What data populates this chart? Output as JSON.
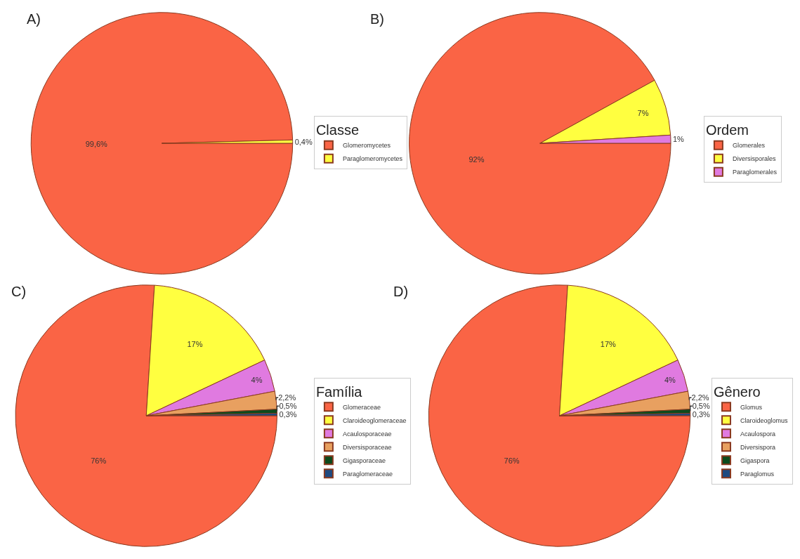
{
  "chart_data": [
    {
      "type": "pie",
      "title": "A)",
      "legend_title": "Classe",
      "legend": "right",
      "categories": [
        "Glomeromycetes",
        "Paraglomeromycetes"
      ],
      "values": [
        99.6,
        0.4
      ],
      "value_labels": [
        "99,6%",
        "0,4%"
      ],
      "colors": [
        "#fa6445",
        "#ffff40"
      ]
    },
    {
      "type": "pie",
      "title": "B)",
      "legend_title": "Ordem",
      "legend": "right",
      "categories": [
        "Glomerales",
        "Diversisporales",
        "Paraglomerales"
      ],
      "values": [
        92,
        7,
        1
      ],
      "value_labels": [
        "92%",
        "7%",
        "1%"
      ],
      "colors": [
        "#fa6445",
        "#ffff40",
        "#e07ae0"
      ]
    },
    {
      "type": "pie",
      "title": "C)",
      "legend_title": "Família",
      "legend": "right",
      "categories": [
        "Glomeraceae",
        "Claroideoglomeraceae",
        "Acaulosporaceae",
        "Diversisporaceae",
        "Gigasporaceae",
        "Paraglomeraceae"
      ],
      "values": [
        76,
        17,
        4,
        2.2,
        0.5,
        0.3
      ],
      "value_labels": [
        "76%",
        "17%",
        "4%",
        "2,2%",
        "0,5%",
        "0,3%"
      ],
      "colors": [
        "#fa6445",
        "#ffff40",
        "#e07ae0",
        "#e8a060",
        "#0c4a1c",
        "#1f4a80"
      ]
    },
    {
      "type": "pie",
      "title": "D)",
      "legend_title": "Gênero",
      "legend": "right",
      "categories": [
        "Glomus",
        "Claroideoglomus",
        "Acaulospora",
        "Diversispora",
        "Gigaspora",
        "Paraglomus"
      ],
      "values": [
        76,
        17,
        4,
        2.2,
        0.5,
        0.3
      ],
      "value_labels": [
        "76%",
        "17%",
        "4%",
        "2,2%",
        "0,5%",
        "0,3%"
      ],
      "colors": [
        "#fa6445",
        "#ffff40",
        "#e07ae0",
        "#e8a060",
        "#0c4a1c",
        "#1f4a80"
      ]
    }
  ]
}
